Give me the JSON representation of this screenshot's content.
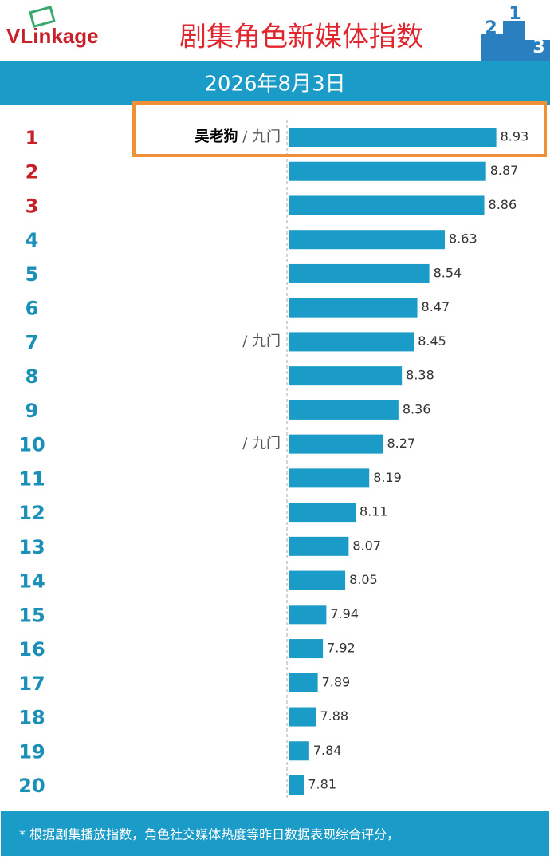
{
  "header": {
    "logo": "VLinkage",
    "podium": [
      "2",
      "1",
      "3"
    ]
  },
  "chart_data": {
    "type": "bar",
    "orientation": "horizontal",
    "title": "剧集角色新媒体指数",
    "subtitle": "2026年8月3日",
    "ranks": [
      1,
      2,
      3,
      4,
      5,
      6,
      7,
      8,
      9,
      10,
      11,
      12,
      13,
      14,
      15,
      16,
      17,
      18,
      19,
      20
    ],
    "categories": [
      "吴老狗",
      null,
      null,
      null,
      null,
      null,
      null,
      null,
      null,
      null,
      null,
      null,
      null,
      null,
      null,
      null,
      null,
      null,
      null,
      null
    ],
    "dramas": [
      "九门",
      null,
      null,
      null,
      null,
      null,
      "九门",
      null,
      null,
      "九门",
      null,
      null,
      null,
      null,
      null,
      null,
      null,
      null,
      null,
      null
    ],
    "separator": "/",
    "values": [
      8.93,
      8.87,
      8.86,
      8.63,
      8.54,
      8.47,
      8.45,
      8.38,
      8.36,
      8.27,
      8.19,
      8.11,
      8.07,
      8.05,
      7.94,
      7.92,
      7.89,
      7.88,
      7.84,
      7.81
    ],
    "color": "#1a9bc8",
    "top_rank_color": "#c8202a",
    "rank_color": "#1a8fb8",
    "xlim": [
      7.72,
      9.15
    ],
    "footnote": "* 根据剧集播放指数，角色社交媒体热度等昨日数据表现综合评分，"
  }
}
